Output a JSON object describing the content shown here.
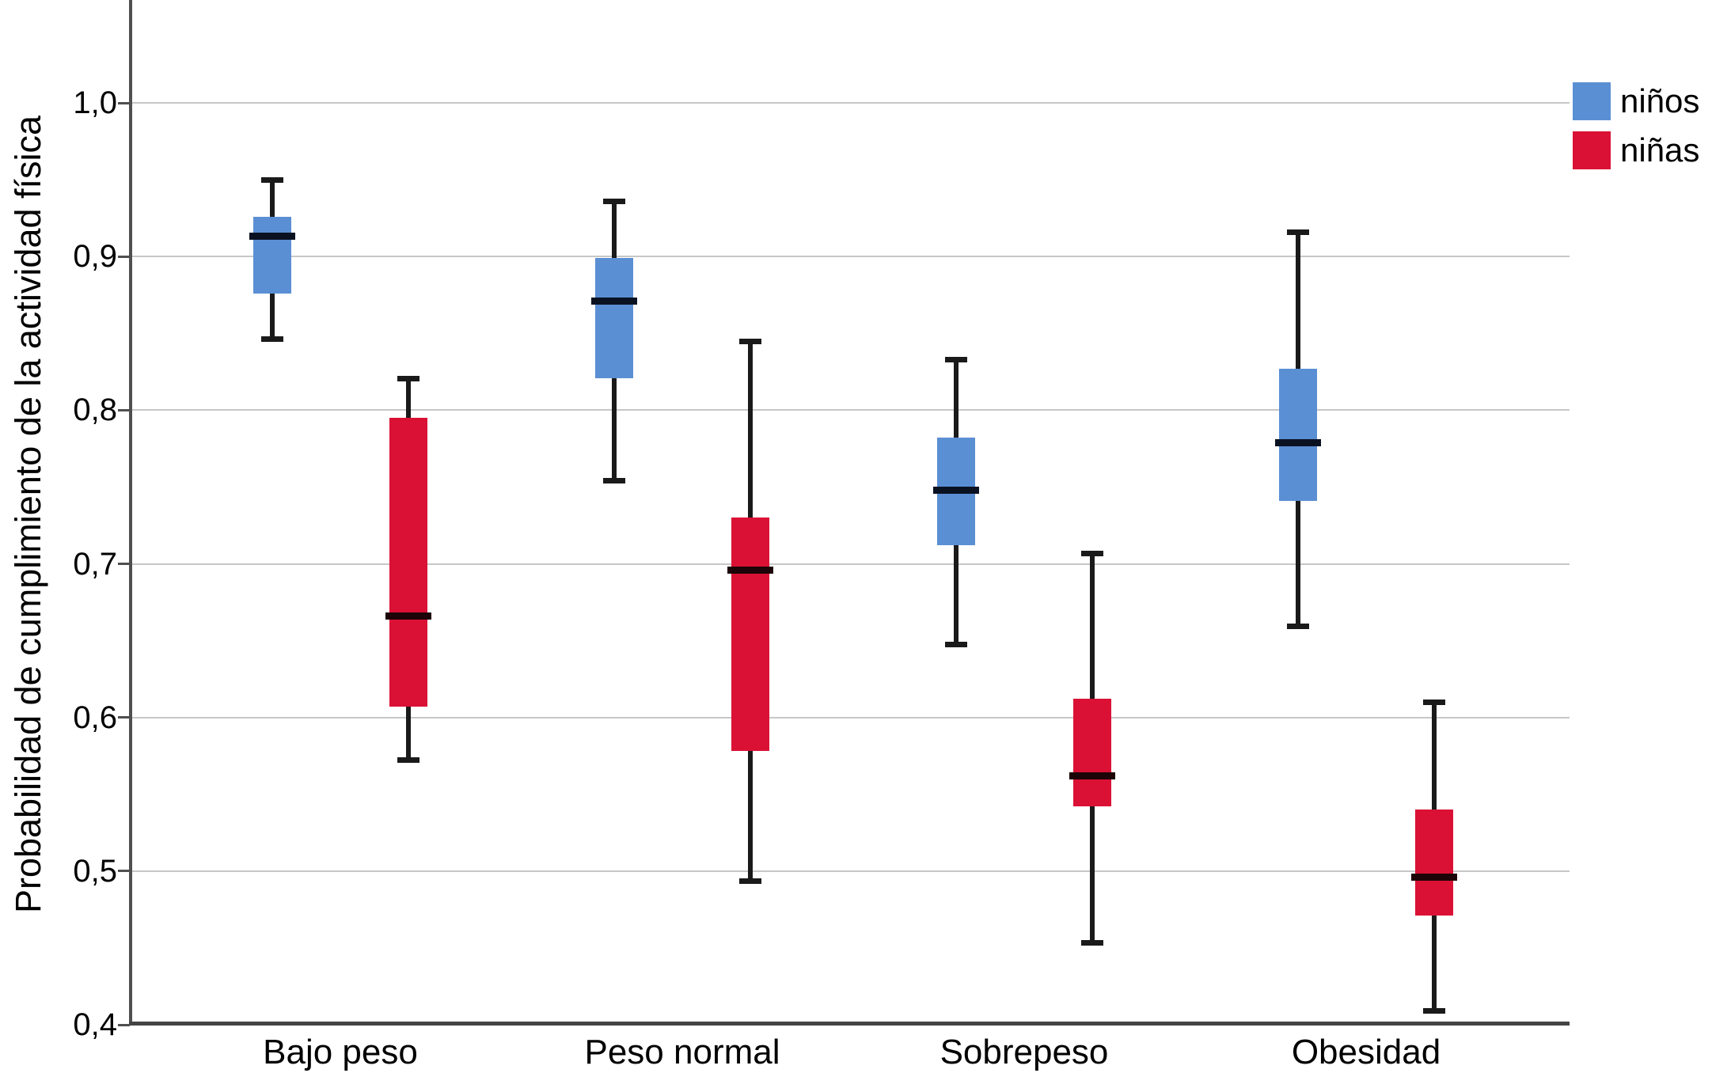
{
  "chart_data": {
    "type": "boxplot",
    "title": "",
    "xlabel": "",
    "ylabel": "Probabilidad de cumplimiento de la actividad física",
    "categories": [
      "Bajo peso",
      "Peso normal",
      "Sobrepeso",
      "Obesidad"
    ],
    "y_ticks": [
      "1,0",
      "0,9",
      "0,8",
      "0,7",
      "0,6",
      "0,5",
      "0,4"
    ],
    "y_tick_values": [
      1.0,
      0.9,
      0.8,
      0.7,
      0.6,
      0.5,
      0.4
    ],
    "ylim": [
      0.4,
      1.0
    ],
    "grid": "horizontal",
    "gridline_color": "#c7c7c7",
    "axis_color": "#4f4f4f",
    "legend": {
      "position": "top-right",
      "entries": [
        {
          "label": "niños",
          "color": "#5b8fd4"
        },
        {
          "label": "niñas",
          "color": "#da1135"
        }
      ]
    },
    "series": [
      {
        "name": "niños",
        "color": "#5b8fd4",
        "median_color": "#0a1222",
        "whisker_color": "#1a1a1a",
        "boxes": [
          {
            "category": "Bajo peso",
            "whisker_low": 0.846,
            "q1": 0.876,
            "median": 0.913,
            "q3": 0.926,
            "whisker_high": 0.95
          },
          {
            "category": "Peso normal",
            "whisker_low": 0.754,
            "q1": 0.821,
            "median": 0.871,
            "q3": 0.899,
            "whisker_high": 0.936
          },
          {
            "category": "Sobrepeso",
            "whisker_low": 0.647,
            "q1": 0.712,
            "median": 0.748,
            "q3": 0.782,
            "whisker_high": 0.833
          },
          {
            "category": "Obesidad",
            "whisker_low": 0.659,
            "q1": 0.741,
            "median": 0.779,
            "q3": 0.827,
            "whisker_high": 0.916
          }
        ]
      },
      {
        "name": "niñas",
        "color": "#da1135",
        "median_color": "#1d0408",
        "whisker_color": "#1a1a1a",
        "boxes": [
          {
            "category": "Bajo peso",
            "whisker_low": 0.572,
            "q1": 0.607,
            "median": 0.666,
            "q3": 0.795,
            "whisker_high": 0.821
          },
          {
            "category": "Peso normal",
            "whisker_low": 0.493,
            "q1": 0.578,
            "median": 0.696,
            "q3": 0.73,
            "whisker_high": 0.845
          },
          {
            "category": "Sobrepeso",
            "whisker_low": 0.453,
            "q1": 0.542,
            "median": 0.562,
            "q3": 0.612,
            "whisker_high": 0.707
          },
          {
            "category": "Obesidad",
            "whisker_low": 0.409,
            "q1": 0.471,
            "median": 0.496,
            "q3": 0.54,
            "whisker_high": 0.61
          }
        ]
      }
    ]
  }
}
